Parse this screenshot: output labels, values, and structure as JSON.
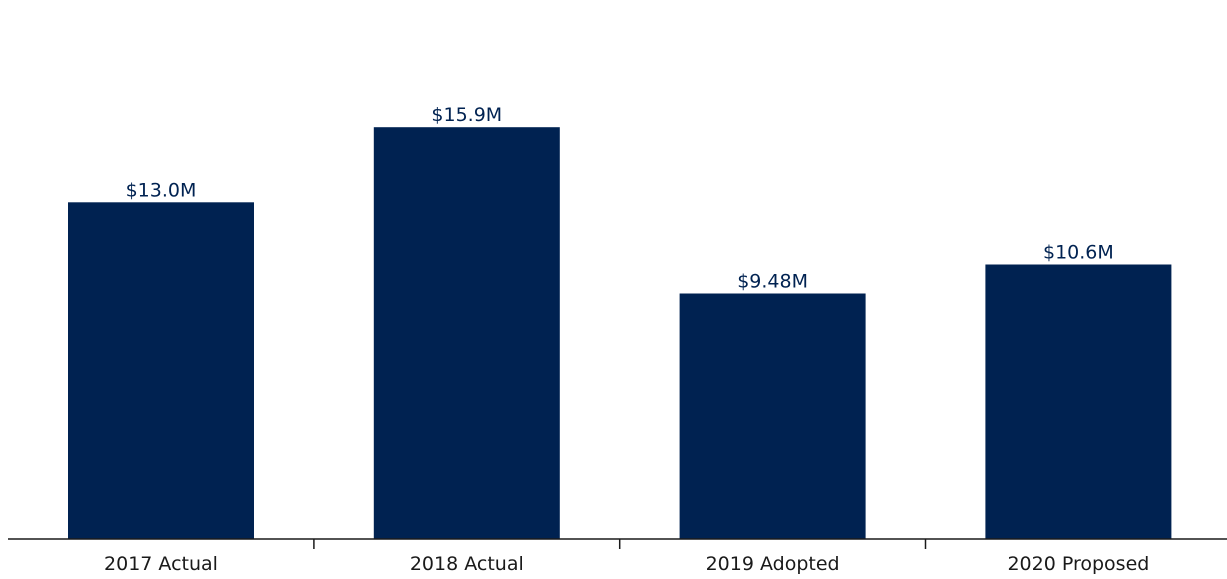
{
  "chart_data": {
    "type": "bar",
    "categories": [
      "2017 Actual",
      "2018 Actual",
      "2019 Adopted",
      "2020 Proposed"
    ],
    "values": [
      13.0,
      15.9,
      9.48,
      10.6
    ],
    "value_labels": [
      "$13.0M",
      "$15.9M",
      "$9.48M",
      "$10.6M"
    ],
    "title": "",
    "xlabel": "",
    "ylabel": "",
    "ylim": [
      0,
      17
    ],
    "grid": false,
    "legend": "none",
    "y_axis_visible": false,
    "colors": {
      "bar": "#002251",
      "label": "#002251",
      "axis": "#1a1a1a"
    }
  }
}
